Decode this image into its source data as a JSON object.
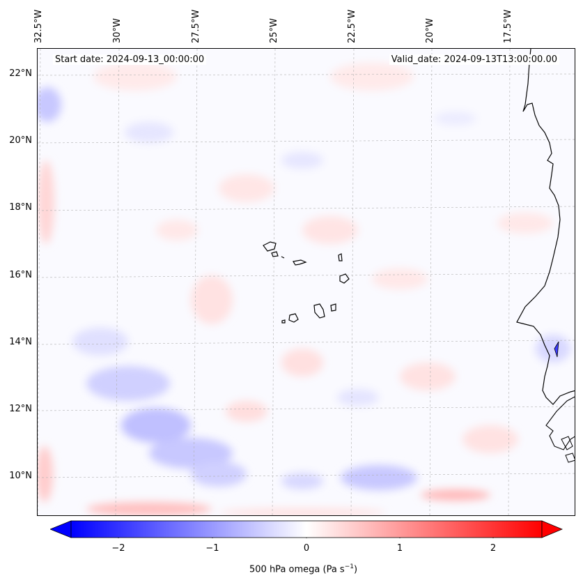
{
  "map": {
    "start_date": "Start date: 2024-09-13_00:00:00",
    "valid_date": "Valid_date: 2024-09-13T13:00:00.00",
    "lon_labels": [
      "32.5°W",
      "30°W",
      "27.5°W",
      "25°W",
      "22.5°W",
      "20°W",
      "17.5°W"
    ],
    "lat_labels": [
      "22°N",
      "20°N",
      "18°N",
      "16°N",
      "14°N",
      "12°N",
      "10°N"
    ]
  },
  "colorbar": {
    "label": "500 hPa omega (Pa s",
    "label_sup": "−1",
    "label_end": ")",
    "ticks": [
      "−2",
      "−1",
      "0",
      "1",
      "2"
    ],
    "colors": {
      "neg": "#0000ff",
      "zero": "#ffffff",
      "pos": "#ff0000"
    }
  }
}
